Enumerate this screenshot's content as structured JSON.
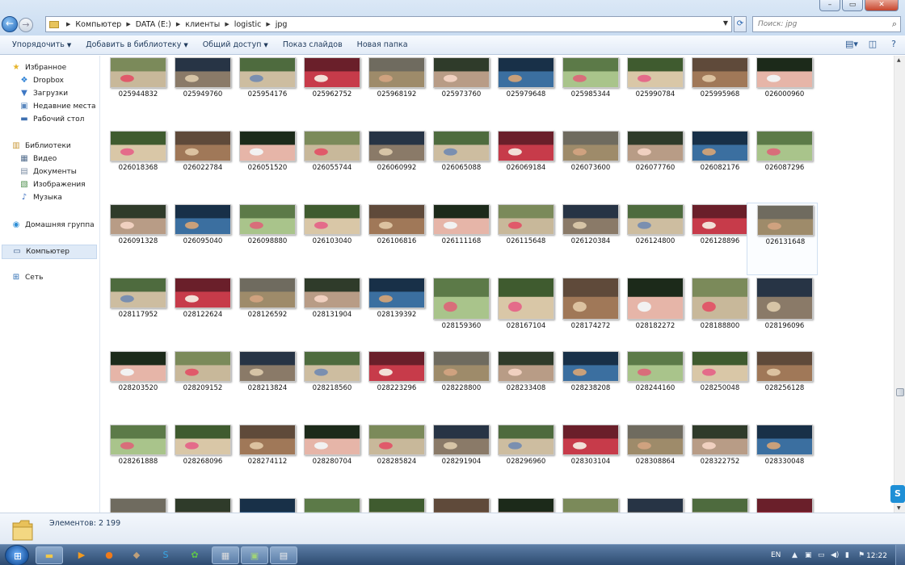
{
  "window": {
    "controls": {
      "minimize": "–",
      "maximize": "▭",
      "close": "✕"
    }
  },
  "navigation": {
    "back_icon": "arrow-left",
    "forward_icon": "arrow-right"
  },
  "address": {
    "crumbs": [
      "Компьютер",
      "DATA (E:)",
      "клиенты",
      "logistic",
      "jpg"
    ]
  },
  "search": {
    "placeholder": "Поиск: jpg"
  },
  "toolbar": {
    "organize": "Упорядочить",
    "add_to_library": "Добавить в библиотеку",
    "share": "Общий доступ",
    "slideshow": "Показ слайдов",
    "new_folder": "Новая папка"
  },
  "sidebar": {
    "favorites": "Избранное",
    "dropbox": "Dropbox",
    "downloads": "Загрузки",
    "recent": "Недавние места",
    "desktop": "Рабочий стол",
    "libraries": "Библиотеки",
    "video": "Видео",
    "documents": "Документы",
    "pictures": "Изображения",
    "music": "Музыка",
    "homegroup": "Домашняя группа",
    "computer": "Компьютер",
    "network": "Сеть"
  },
  "files": {
    "selected_index": 32,
    "names": [
      "025944832",
      "025949760",
      "025954176",
      "025962752",
      "025968192",
      "025973760",
      "025979648",
      "025985344",
      "025990784",
      "025995968",
      "026000960",
      "026018368",
      "026022784",
      "026051520",
      "026055744",
      "026060992",
      "026065088",
      "026069184",
      "026073600",
      "026077760",
      "026082176",
      "026087296",
      "026091328",
      "026095040",
      "026098880",
      "026103040",
      "026106816",
      "026111168",
      "026115648",
      "026120384",
      "026124800",
      "026128896",
      "026131648",
      "028117952",
      "028122624",
      "028126592",
      "028131904",
      "028139392",
      "028159360",
      "028167104",
      "028174272",
      "028182272",
      "028188800",
      "028196096",
      "028203520",
      "028209152",
      "028213824",
      "028218560",
      "028223296",
      "028228800",
      "028233408",
      "028238208",
      "028244160",
      "028250048",
      "028256128",
      "028261888",
      "028268096",
      "028274112",
      "028280704",
      "028285824",
      "028291904",
      "028296960",
      "028303104",
      "028308864",
      "028322752",
      "028330048",
      "",
      "",
      "",
      "",
      "",
      "",
      "",
      "",
      "",
      "",
      ""
    ]
  },
  "status": {
    "count_text": "Элементов: 2 199"
  },
  "taskbar": {
    "lang": "EN",
    "clock": "12:22"
  },
  "colors": {
    "accent": "#2a66b1",
    "selection": "#dfeaf7",
    "taskbar": "#2c4a70"
  }
}
